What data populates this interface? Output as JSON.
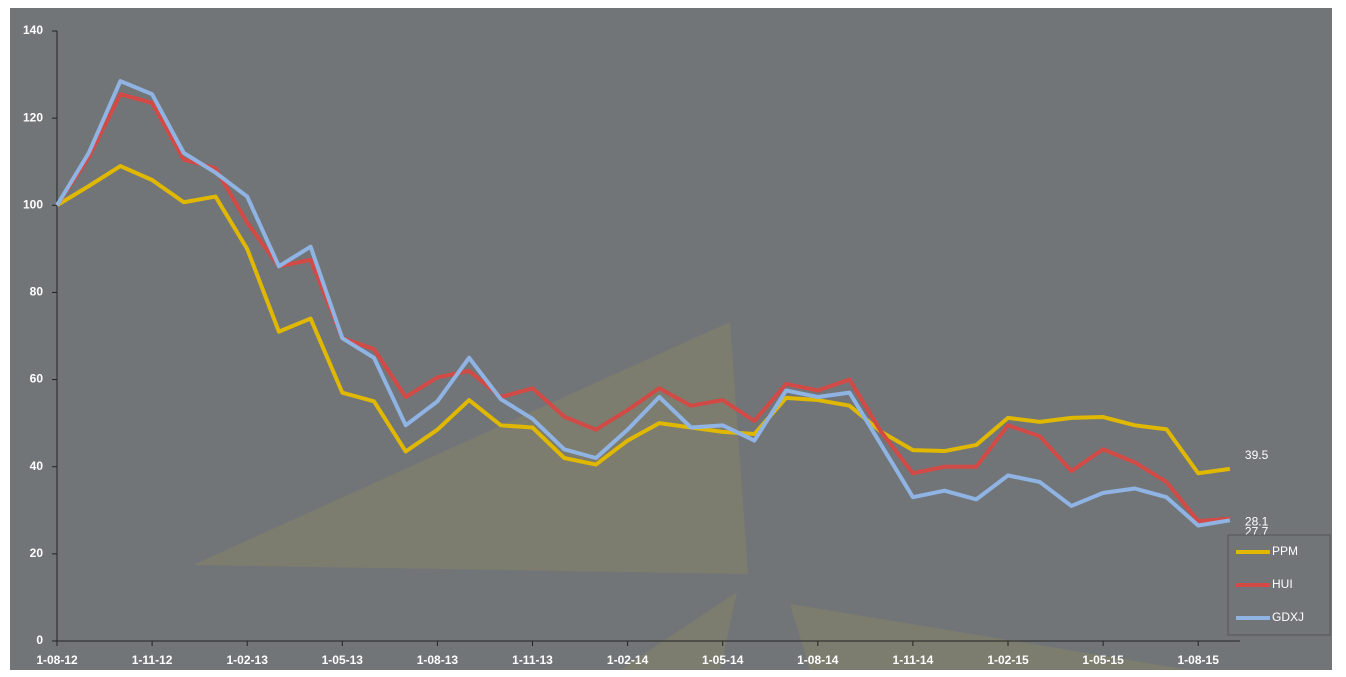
{
  "chart_data": {
    "type": "line",
    "categories": [
      "1-08-12",
      null,
      null,
      "1-11-12",
      null,
      null,
      "1-02-13",
      null,
      null,
      "1-05-13",
      null,
      null,
      "1-08-13",
      null,
      null,
      "1-11-13",
      null,
      null,
      "1-02-14",
      null,
      null,
      "1-05-14",
      null,
      null,
      "1-08-14",
      null,
      null,
      "1-11-14",
      null,
      null,
      "1-02-15",
      null,
      null,
      "1-05-15",
      null,
      null,
      "1-08-15",
      null
    ],
    "series": [
      {
        "name": "PPM",
        "color": "#e0b800",
        "values": [
          100,
          104.4,
          109,
          105.8,
          100.7,
          102,
          90,
          71,
          74,
          57,
          55,
          43.5,
          48.5,
          55.3,
          49.5,
          49,
          42,
          40.5,
          46,
          50,
          49,
          48,
          47.5,
          55.8,
          55.3,
          54,
          48,
          43.8,
          43.6,
          45,
          51.2,
          50.3,
          51.2,
          51.4,
          49.5,
          48.6,
          38.5,
          39.5
        ]
      },
      {
        "name": "HUI",
        "color": "#d24a45",
        "values": [
          100,
          111,
          125.5,
          123.5,
          110.5,
          108.5,
          96,
          86,
          87.5,
          69.5,
          67,
          56,
          60.5,
          62,
          56,
          58,
          51.5,
          48.5,
          53,
          58,
          54,
          55.3,
          50.5,
          59,
          57.5,
          60,
          48,
          38.5,
          40,
          40,
          49.5,
          47,
          39,
          44,
          41,
          36.5,
          27.5,
          28.1
        ]
      },
      {
        "name": "GDXJ",
        "color": "#8fb4e3",
        "values": [
          100,
          112,
          128.5,
          125.5,
          112,
          107.5,
          102,
          86,
          90.5,
          69.5,
          65,
          49.5,
          55,
          65,
          55.5,
          51,
          44,
          42,
          48.5,
          56,
          49,
          49.5,
          46,
          57.5,
          56,
          57,
          45,
          33,
          34.5,
          32.5,
          38,
          36.5,
          31,
          34,
          35,
          33,
          26.5,
          27.7
        ]
      }
    ],
    "ylim": [
      0,
      140
    ],
    "yticks": [
      0,
      20,
      40,
      60,
      80,
      100,
      120,
      140
    ],
    "end_labels": true,
    "legend": "lower right"
  }
}
